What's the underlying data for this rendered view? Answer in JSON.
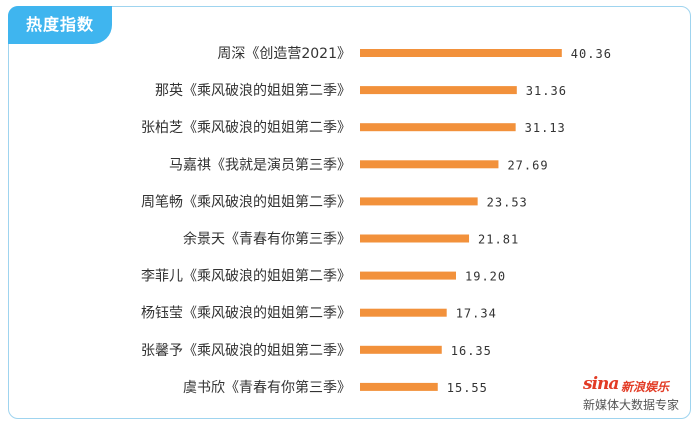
{
  "header": {
    "title": "热度指数"
  },
  "brand": {
    "logo_main": "sina",
    "logo_sub": "新浪娱乐",
    "caption": "新媒体大数据专家",
    "color": "#e23b25"
  },
  "colors": {
    "bar": "#f2913b",
    "tab": "#3fb5ef",
    "border": "#9fd4ef"
  },
  "chart_data": {
    "type": "bar",
    "orientation": "horizontal",
    "title": "热度指数",
    "categories": [
      "周深《创造营2021》",
      "那英《乘风破浪的姐姐第二季》",
      "张柏芝《乘风破浪的姐姐第二季》",
      "马嘉祺《我就是演员第三季》",
      "周笔畅《乘风破浪的姐姐第二季》",
      "余景天《青春有你第三季》",
      "李菲儿《乘风破浪的姐姐第二季》",
      "杨钰莹《乘风破浪的姐姐第二季》",
      "张馨予《乘风破浪的姐姐第二季》",
      "虞书欣《青春有你第三季》"
    ],
    "values": [
      40.36,
      31.36,
      31.13,
      27.69,
      23.53,
      21.81,
      19.2,
      17.34,
      16.35,
      15.55
    ],
    "value_labels": [
      "40.36",
      "31.36",
      "31.13",
      "27.69",
      "23.53",
      "21.81",
      "19.20",
      "17.34",
      "16.35",
      "15.55"
    ],
    "grid": false
  }
}
